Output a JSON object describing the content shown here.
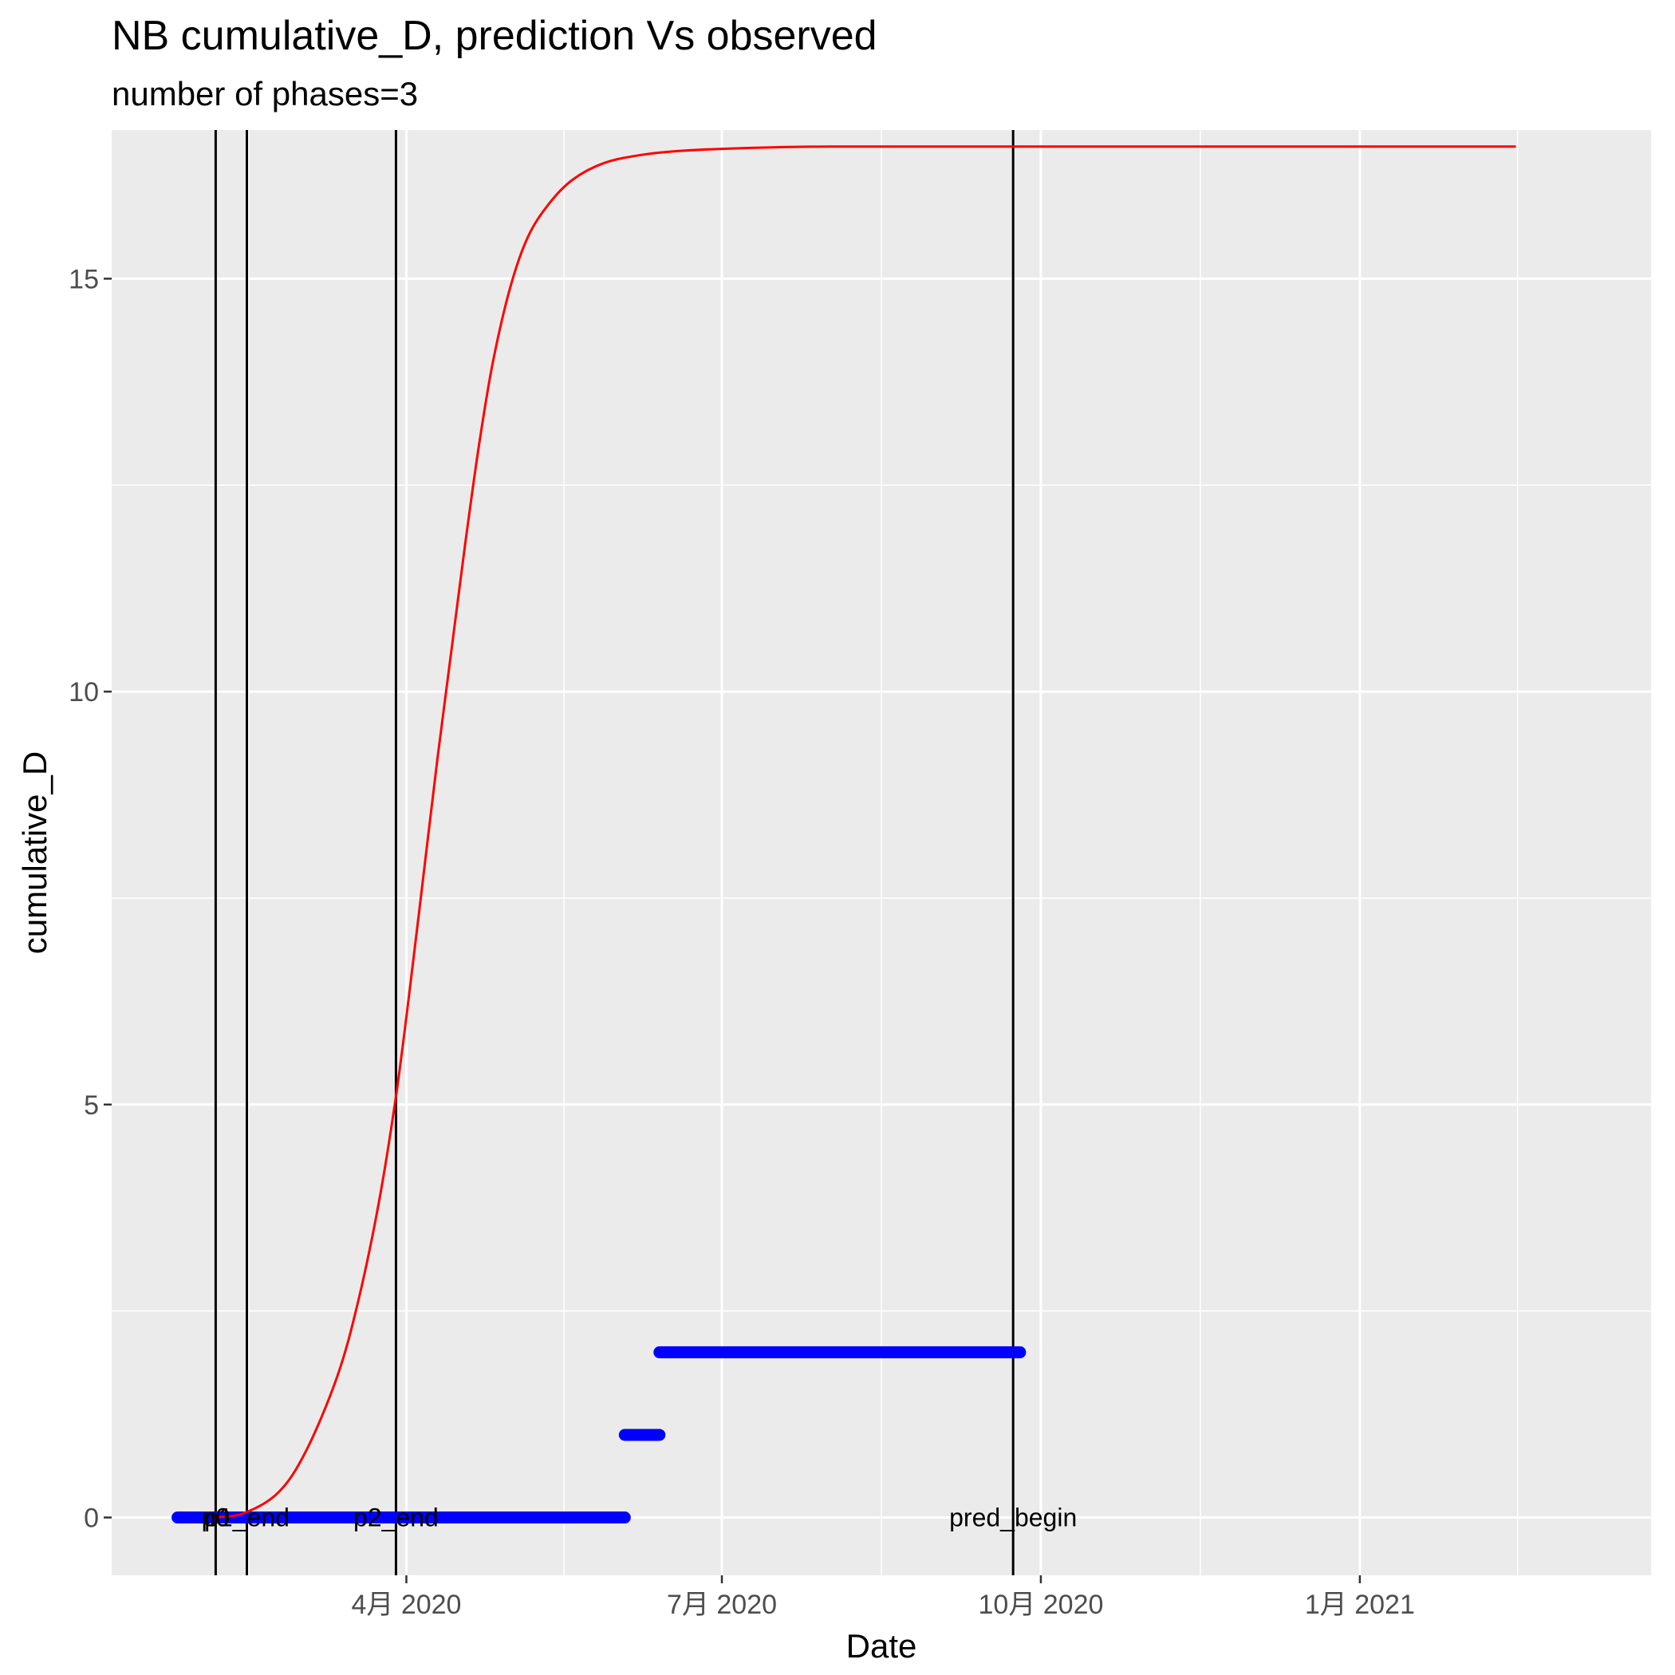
{
  "chart_data": {
    "type": "line",
    "title": "NB cumulative_D,  prediction Vs observed",
    "subtitle": "number of phases=3",
    "xlabel": "Date",
    "ylabel": "cumulative_D",
    "xlim": [
      "2020-01-07",
      "2021-03-26"
    ],
    "ylim": [
      -0.7,
      16.8
    ],
    "x_ticks": [
      {
        "date": "2020-04-01",
        "label": "4月 2020"
      },
      {
        "date": "2020-07-01",
        "label": "7月 2020"
      },
      {
        "date": "2020-10-01",
        "label": "10月 2020"
      },
      {
        "date": "2021-01-01",
        "label": "1月 2021"
      }
    ],
    "y_ticks": [
      0,
      5,
      10,
      15
    ],
    "grid": true,
    "series": [
      {
        "role": "prediction",
        "color": "#ff0000",
        "x": [
          "2020-02-05",
          "2020-02-14",
          "2020-02-24",
          "2020-03-03",
          "2020-03-12",
          "2020-03-18",
          "2020-03-24",
          "2020-03-29",
          "2020-04-02",
          "2020-04-06",
          "2020-04-10",
          "2020-04-14",
          "2020-04-18",
          "2020-04-22",
          "2020-04-26",
          "2020-05-01",
          "2020-05-06",
          "2020-05-12",
          "2020-05-19",
          "2020-05-28",
          "2020-06-08",
          "2020-06-20",
          "2020-07-07",
          "2020-08-01",
          "2020-10-01",
          "2021-01-01",
          "2021-02-15"
        ],
        "y": [
          0.0,
          0.05,
          0.3,
          0.8,
          1.7,
          2.6,
          3.8,
          5.1,
          6.4,
          7.8,
          9.2,
          10.5,
          11.8,
          13.0,
          14.0,
          14.9,
          15.5,
          15.9,
          16.2,
          16.4,
          16.5,
          16.55,
          16.58,
          16.6,
          16.6,
          16.6,
          16.6
        ]
      },
      {
        "role": "observed",
        "color": "#0000ff",
        "segments": [
          {
            "x_start": "2020-01-26",
            "x_end": "2020-06-03",
            "y": 0
          },
          {
            "x_start": "2020-06-03",
            "x_end": "2020-06-13",
            "y": 1
          },
          {
            "x_start": "2020-06-13",
            "x_end": "2020-09-25",
            "y": 2
          }
        ]
      }
    ],
    "vertical_lines": [
      {
        "date": "2020-02-06",
        "label": "p0"
      },
      {
        "date": "2020-02-15",
        "label": "p1_end"
      },
      {
        "date": "2020-03-29",
        "label": "p2_end"
      },
      {
        "date": "2020-09-23",
        "label": "pred_begin"
      }
    ]
  }
}
